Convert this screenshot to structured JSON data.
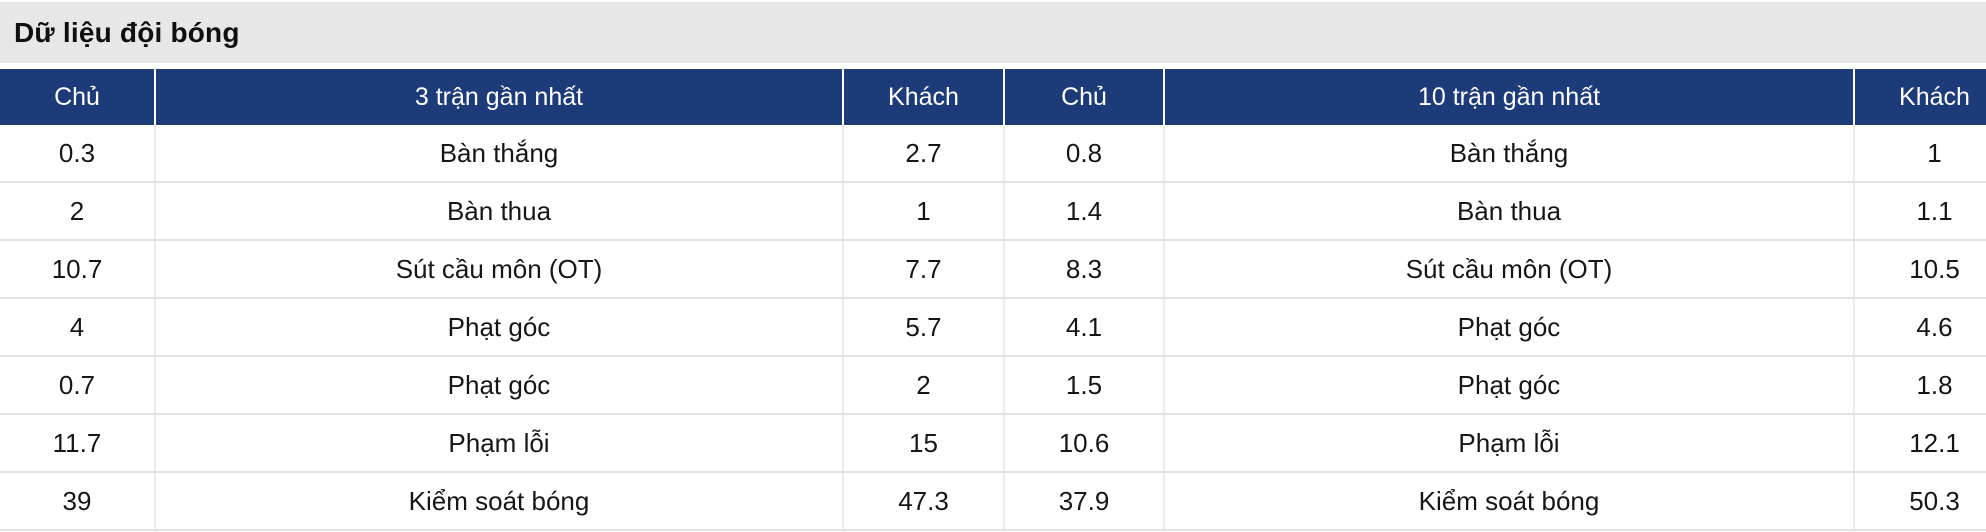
{
  "page": {
    "title": "Dữ liệu đội bóng"
  },
  "colors": {
    "header_bg": "#1c3b78",
    "header_text": "#ffffff",
    "title_band_bg": "#e7e7e7",
    "body_text": "#161616",
    "row_border": "#e2e2e2"
  },
  "table": {
    "columns": [
      {
        "key": "home3",
        "label": "Chủ"
      },
      {
        "key": "stat3",
        "label": "3 trận gần nhất"
      },
      {
        "key": "away3",
        "label": "Khách"
      },
      {
        "key": "home10",
        "label": "Chủ"
      },
      {
        "key": "stat10",
        "label": "10 trận gần nhất"
      },
      {
        "key": "away10",
        "label": "Khách"
      }
    ],
    "rows": [
      {
        "home3": "0.3",
        "stat3": "Bàn thắng",
        "away3": "2.7",
        "home10": "0.8",
        "stat10": "Bàn thắng",
        "away10": "1"
      },
      {
        "home3": "2",
        "stat3": "Bàn thua",
        "away3": "1",
        "home10": "1.4",
        "stat10": "Bàn thua",
        "away10": "1.1"
      },
      {
        "home3": "10.7",
        "stat3": "Sút cầu môn (OT)",
        "away3": "7.7",
        "home10": "8.3",
        "stat10": "Sút cầu môn (OT)",
        "away10": "10.5"
      },
      {
        "home3": "4",
        "stat3": "Phạt góc",
        "away3": "5.7",
        "home10": "4.1",
        "stat10": "Phạt góc",
        "away10": "4.6"
      },
      {
        "home3": "0.7",
        "stat3": "Phạt góc",
        "away3": "2",
        "home10": "1.5",
        "stat10": "Phạt góc",
        "away10": "1.8"
      },
      {
        "home3": "11.7",
        "stat3": "Phạm lỗi",
        "away3": "15",
        "home10": "10.6",
        "stat10": "Phạm lỗi",
        "away10": "12.1"
      },
      {
        "home3": "39",
        "stat3": "Kiểm soát bóng",
        "away3": "47.3",
        "home10": "37.9",
        "stat10": "Kiểm soát bóng",
        "away10": "50.3"
      }
    ]
  }
}
